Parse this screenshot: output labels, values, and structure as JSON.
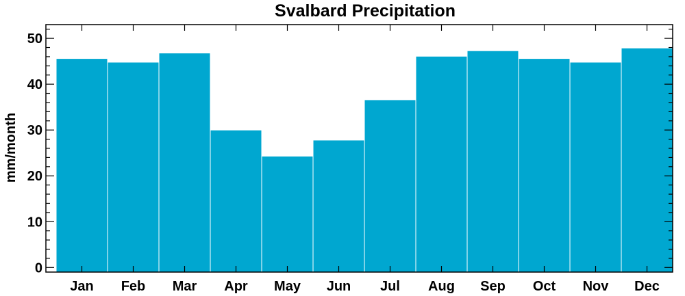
{
  "chart_data": {
    "type": "bar",
    "title": "Svalbard Precipitation",
    "xlabel": "",
    "ylabel": "mm/month",
    "categories": [
      "Jan",
      "Feb",
      "Mar",
      "Apr",
      "May",
      "Jun",
      "Jul",
      "Aug",
      "Sep",
      "Oct",
      "Nov",
      "Dec"
    ],
    "values": [
      45.6,
      44.8,
      46.8,
      30.0,
      24.3,
      27.8,
      36.6,
      46.1,
      47.3,
      45.6,
      44.8,
      47.9
    ],
    "ylim": [
      -1,
      53
    ],
    "yticks": [
      0,
      10,
      20,
      30,
      40,
      50
    ],
    "ytick_labels": [
      "0",
      "10",
      "20",
      "30",
      "40",
      "50"
    ],
    "bar_color": "#00a7d0",
    "grid": false,
    "legend": "none"
  }
}
